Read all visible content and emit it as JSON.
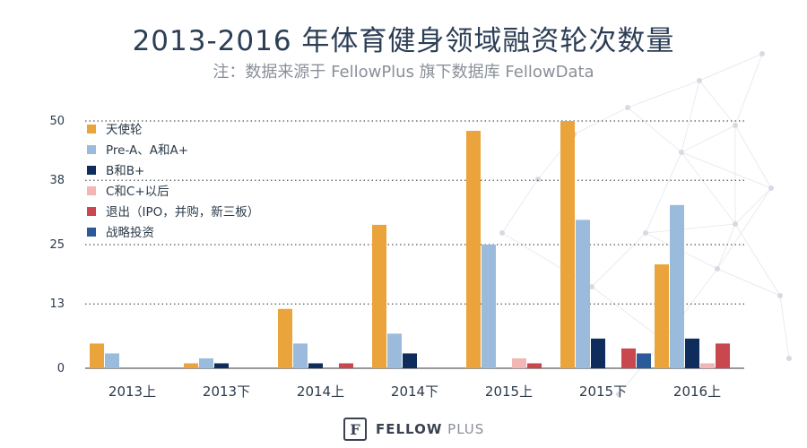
{
  "title": "2013-2016 年体育健身领域融资轮次数量",
  "subtitle": "注：数据来源于 FellowPlus 旗下数据库 FellowData",
  "brand": {
    "bold": "FELLOW",
    "light": "PLUS",
    "logo_glyph": "F"
  },
  "chart_data": {
    "type": "bar",
    "categories": [
      "2013上",
      "2013下",
      "2014上",
      "2014下",
      "2015上",
      "2015下",
      "2016上"
    ],
    "y_ticks": [
      "0",
      "13",
      "25",
      "38",
      "50"
    ],
    "ylim": [
      0,
      50
    ],
    "grid": true,
    "legend_position": "top-left",
    "series": [
      {
        "name": "天使轮",
        "color": "#eba43b",
        "values": [
          5,
          1,
          12,
          29,
          48,
          50,
          21
        ]
      },
      {
        "name": "Pre-A、A和A+",
        "color": "#9bbbdd",
        "values": [
          3,
          2,
          5,
          7,
          25,
          30,
          33
        ]
      },
      {
        "name": "B和B+",
        "color": "#0f2d5c",
        "values": [
          0,
          1,
          1,
          3,
          0,
          6,
          6
        ]
      },
      {
        "name": "C和C+以后",
        "color": "#f2b6b4",
        "values": [
          0,
          0,
          0,
          0,
          2,
          0,
          1
        ]
      },
      {
        "name": "退出（IPO，并购，新三板）",
        "color": "#c9474f",
        "values": [
          0,
          0,
          1,
          0,
          1,
          4,
          5
        ]
      },
      {
        "name": "战略投资",
        "color": "#2a5a99",
        "values": [
          0,
          0,
          0,
          0,
          0,
          3,
          0
        ]
      }
    ]
  }
}
